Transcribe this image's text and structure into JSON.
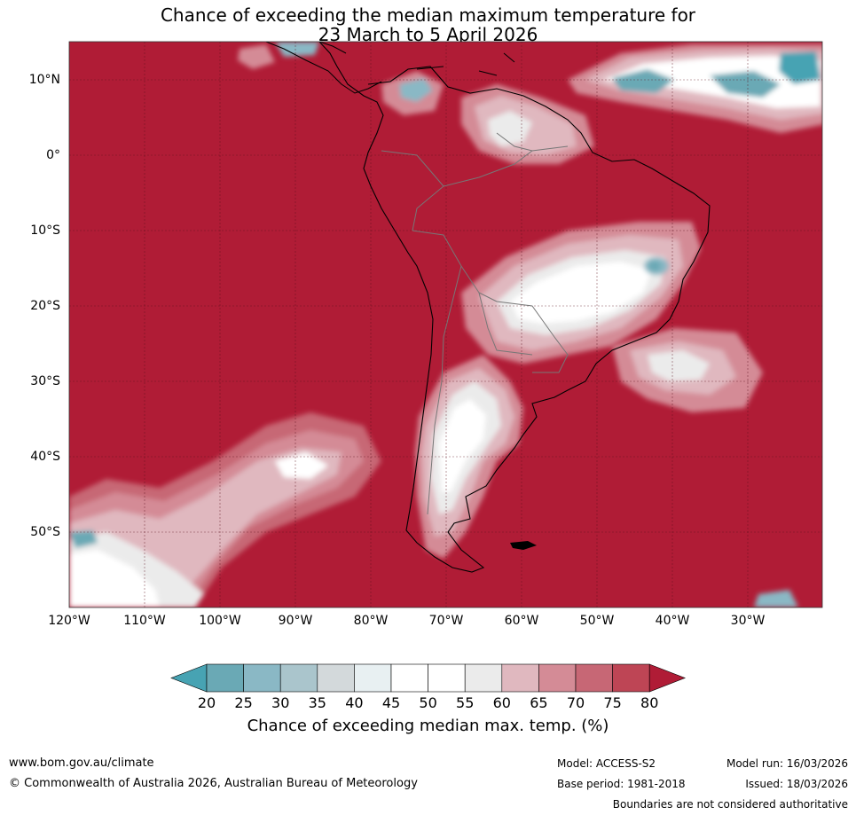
{
  "title": {
    "line1": "Chance of exceeding the median maximum temperature for",
    "line2": "23 March to 5 April 2026"
  },
  "map": {
    "lat_labels": [
      "10°N",
      "0°",
      "10°S",
      "20°S",
      "30°S",
      "40°S",
      "50°S"
    ],
    "lon_labels": [
      "120°W",
      "110°W",
      "100°W",
      "90°W",
      "80°W",
      "70°W",
      "60°W",
      "50°W",
      "40°W",
      "30°W"
    ],
    "background_color": "#b01c36",
    "extent": {
      "lon": [
        -120,
        -20
      ],
      "lat": [
        -60,
        15
      ]
    }
  },
  "colorbar": {
    "ticks": [
      "20",
      "25",
      "30",
      "35",
      "40",
      "45",
      "50",
      "55",
      "60",
      "65",
      "70",
      "75",
      "80"
    ],
    "colors": [
      "#47a3b3",
      "#6aa9b5",
      "#8ab8c5",
      "#aac5cc",
      "#d3d9db",
      "#e8f0f2",
      "#ffffff",
      "#ffffff",
      "#ebebeb",
      "#e0b8bf",
      "#d48b96",
      "#c76775",
      "#be4555",
      "#b01c36"
    ],
    "label": "Chance of exceeding median max. temp. (%)"
  },
  "footer": {
    "website": "www.bom.gov.au/climate",
    "copyright": "© Commonwealth of Australia 2026, Australian Bureau of Meteorology",
    "model": "Model: ACCESS-S2",
    "base_period": "Base period: 1981-2018",
    "model_run": "Model run: 16/03/2026",
    "issued": "Issued: 18/03/2026",
    "disclaimer": "Boundaries are not considered authoritative"
  }
}
